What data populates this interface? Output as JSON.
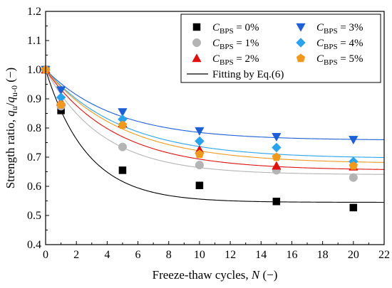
{
  "chart_data": {
    "type": "scatter",
    "xlabel": "Freeze-thaw cycles, N (−)",
    "ylabel": "Strength ratio, qu/qu-0 (−)",
    "xlim": [
      0,
      22
    ],
    "ylim": [
      0.4,
      1.2
    ],
    "xticks": [
      0,
      2,
      4,
      6,
      8,
      10,
      12,
      14,
      16,
      18,
      20,
      22
    ],
    "yticks": [
      0.4,
      0.5,
      0.6,
      0.7,
      0.8,
      0.9,
      1.0,
      1.1,
      1.2
    ],
    "legend_position": "top-right",
    "x": [
      0,
      1,
      5,
      10,
      15,
      20
    ],
    "series": [
      {
        "name": "CBPS = 0%",
        "label_main": "C",
        "label_sub": "BPS",
        "label_rest": " = 0%",
        "marker": "square",
        "color": "#000000",
        "values": [
          1.0,
          0.86,
          0.655,
          0.603,
          0.548,
          0.527
        ],
        "fit": {
          "a": 0.545,
          "k": 0.37
        }
      },
      {
        "name": "CBPS = 1%",
        "label_main": "C",
        "label_sub": "BPS",
        "label_rest": " = 1%",
        "marker": "circle",
        "color": "#b4b4b4",
        "values": [
          1.0,
          0.875,
          0.735,
          0.673,
          0.655,
          0.63
        ],
        "fit": {
          "a": 0.64,
          "k": 0.27
        }
      },
      {
        "name": "CBPS = 2%",
        "label_main": "C",
        "label_sub": "BPS",
        "label_rest": " = 2%",
        "marker": "triangle-up",
        "color": "#e01010",
        "values": [
          1.0,
          0.89,
          0.815,
          0.725,
          0.67,
          0.667
        ],
        "fit": {
          "a": 0.655,
          "k": 0.22
        }
      },
      {
        "name": "CBPS = 3%",
        "label_main": "C",
        "label_sub": "BPS",
        "label_rest": " = 3%",
        "marker": "triangle-down",
        "color": "#1f5fd6",
        "values": [
          1.0,
          0.93,
          0.855,
          0.79,
          0.77,
          0.76
        ],
        "fit": {
          "a": 0.758,
          "k": 0.22
        }
      },
      {
        "name": "CBPS = 4%",
        "label_main": "C",
        "label_sub": "BPS",
        "label_rest": " = 4%",
        "marker": "diamond",
        "color": "#2aa3ec",
        "values": [
          1.0,
          0.905,
          0.83,
          0.755,
          0.733,
          0.685
        ],
        "fit": {
          "a": 0.695,
          "k": 0.2
        }
      },
      {
        "name": "CBPS = 5%",
        "label_main": "C",
        "label_sub": "BPS",
        "label_rest": " = 5%",
        "marker": "pentagon",
        "color": "#ef9a1c",
        "values": [
          1.0,
          0.88,
          0.81,
          0.71,
          0.7,
          0.67
        ],
        "fit": {
          "a": 0.678,
          "k": 0.2
        }
      }
    ],
    "fit_legend": "Fitting by Eq.(6)"
  }
}
